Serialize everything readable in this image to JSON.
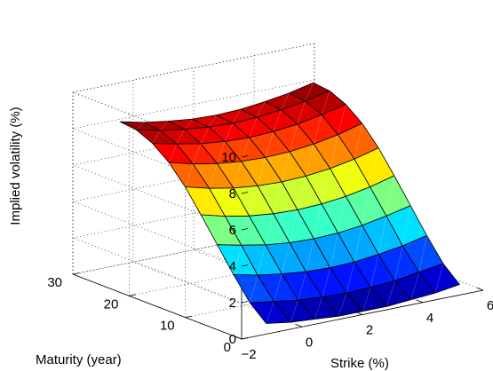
{
  "chart_data": {
    "type": "surface",
    "title": "",
    "xlabel": "Strike (%)",
    "ylabel": "Maturity (year)",
    "zlabel": "Implied volatility (%)",
    "xlim": [
      -2,
      6
    ],
    "ylim": [
      0,
      30
    ],
    "zlim": [
      0,
      10
    ],
    "xticks": [
      -2,
      0,
      2,
      4,
      6
    ],
    "yticks": [
      0,
      10,
      20,
      30
    ],
    "zticks": [
      0,
      2,
      4,
      6,
      8,
      10
    ],
    "xtick_labels": [
      "−2",
      "0",
      "2",
      "4",
      "6"
    ],
    "ytick_labels": [
      "0",
      "10",
      "20",
      "30"
    ],
    "ztick_labels": [
      "0",
      "2",
      "4",
      "6",
      "8",
      "10"
    ],
    "grid": true,
    "colormap": "jet",
    "strike": [
      -1.0,
      -0.2,
      0.6,
      1.4,
      2.2,
      3.0,
      3.8,
      4.6,
      5.4
    ],
    "maturity": [
      1,
      3.9,
      6.8,
      9.7,
      12.6,
      15.4,
      18.3,
      21.2,
      24.1,
      27
    ],
    "volatility": [
      [
        0.4,
        0.2,
        0.1,
        0.0,
        0.0,
        0.0,
        0.1,
        0.2,
        0.4
      ],
      [
        1.2,
        1.0,
        0.8,
        0.7,
        0.65,
        0.7,
        0.8,
        1.0,
        1.2
      ],
      [
        2.4,
        2.1,
        1.9,
        1.75,
        1.7,
        1.75,
        1.9,
        2.1,
        2.4
      ],
      [
        3.7,
        3.4,
        3.15,
        3.0,
        2.95,
        3.0,
        3.15,
        3.4,
        3.7
      ],
      [
        5.0,
        4.65,
        4.4,
        4.25,
        4.2,
        4.25,
        4.4,
        4.65,
        5.0
      ],
      [
        6.2,
        5.85,
        5.6,
        5.45,
        5.4,
        5.45,
        5.6,
        5.85,
        6.2
      ],
      [
        7.2,
        6.85,
        6.6,
        6.45,
        6.4,
        6.45,
        6.6,
        6.85,
        7.2
      ],
      [
        7.9,
        7.6,
        7.35,
        7.2,
        7.15,
        7.2,
        7.35,
        7.6,
        7.9
      ],
      [
        8.3,
        8.0,
        7.8,
        7.65,
        7.6,
        7.65,
        7.8,
        8.0,
        8.3
      ],
      [
        8.4,
        8.1,
        7.9,
        7.75,
        7.7,
        7.75,
        7.9,
        8.1,
        8.4
      ]
    ]
  }
}
